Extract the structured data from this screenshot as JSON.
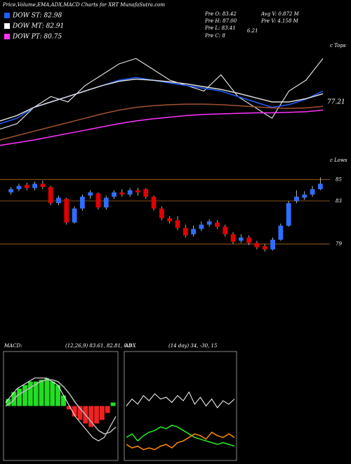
{
  "header": {
    "title": "Price,Volume,EMA,ADX,MACD Charts for XRT MunafaSutra.com",
    "legend": [
      {
        "label": "DOW ST: 82.98",
        "color": "#1f5fff"
      },
      {
        "label": "DOW MT: 82.91",
        "color": "#ffffff"
      },
      {
        "label": "DOW PT: 80.75",
        "color": "#ff33ff"
      }
    ],
    "info": [
      "Pre O: 83.42",
      "Pre H: 87.00",
      "Pre L: 83.41",
      "Pre C: 8",
      "6.21",
      "Avg V: 0.872 M",
      "Pre V: 4.158 M"
    ],
    "price_label": "77.21",
    "tops": "c Tops",
    "lows": "c Lows"
  },
  "chart_data": [
    {
      "type": "line",
      "ylim": [
        68,
        90
      ],
      "series": [
        {
          "name": "Price",
          "color": "#ffffff",
          "values": [
            74,
            75,
            78,
            80,
            79,
            82,
            84,
            86,
            87,
            85,
            83,
            82,
            81,
            84,
            80,
            78,
            76,
            81,
            83,
            87
          ]
        },
        {
          "name": "EMA short",
          "color": "#1f5fff",
          "values": [
            75,
            76,
            78,
            79,
            80,
            81,
            82,
            83,
            83.5,
            83,
            82.5,
            82,
            81.5,
            81,
            80,
            79,
            78,
            78.5,
            79.5,
            81
          ]
        },
        {
          "name": "EMA mid",
          "color": "#dddddd",
          "values": [
            75.5,
            76.5,
            78,
            79,
            80,
            81,
            82,
            82.8,
            83.2,
            83,
            82.7,
            82.3,
            81.8,
            81.3,
            80.6,
            79.8,
            79,
            79,
            79.6,
            80.5
          ]
        },
        {
          "name": "EMA long",
          "color": "#a0522d",
          "values": [
            72,
            72.8,
            73.6,
            74.4,
            75.2,
            76,
            76.8,
            77.5,
            78,
            78.3,
            78.5,
            78.6,
            78.6,
            78.5,
            78.3,
            78.1,
            77.9,
            77.8,
            77.9,
            78.2
          ]
        },
        {
          "name": "EMA longest",
          "color": "#ff33ff",
          "values": [
            71,
            71.5,
            72,
            72.6,
            73.2,
            73.8,
            74.4,
            75,
            75.5,
            75.9,
            76.2,
            76.5,
            76.7,
            76.8,
            76.9,
            77,
            77,
            77.1,
            77.2,
            77.5
          ]
        }
      ]
    },
    {
      "type": "candlestick",
      "ylim": [
        77.5,
        86
      ],
      "yticks": [
        85,
        83,
        79
      ],
      "grid_color": "#b06a20",
      "up_color": "#2f6fff",
      "down_color": "#e00000",
      "open": [
        83.8,
        84.1,
        84.5,
        84.2,
        84.6,
        84.3,
        82.8,
        83.2,
        81.0,
        82.3,
        83.5,
        83.7,
        82.4,
        83.4,
        83.8,
        83.6,
        84.0,
        84.1,
        83.4,
        82.3,
        81.4,
        81.2,
        80.5,
        79.9,
        80.4,
        80.8,
        81.0,
        80.6,
        79.9,
        79.3,
        79.6,
        79.1,
        78.8,
        78.5,
        79.4,
        80.7,
        83.0,
        83.3,
        83.6,
        84.1
      ],
      "close": [
        84.1,
        84.4,
        84.2,
        84.6,
        84.3,
        82.8,
        83.3,
        81.0,
        82.3,
        83.4,
        83.8,
        82.4,
        83.3,
        83.8,
        83.6,
        84.0,
        83.8,
        83.4,
        82.3,
        81.4,
        81.1,
        80.5,
        79.8,
        80.4,
        80.8,
        81.1,
        80.6,
        79.9,
        79.2,
        79.6,
        79.1,
        78.7,
        78.5,
        79.4,
        80.7,
        82.8,
        83.4,
        83.6,
        84.1,
        84.6
      ],
      "high": [
        84.3,
        84.6,
        84.7,
        84.8,
        84.9,
        84.4,
        83.5,
        83.3,
        82.5,
        83.6,
        84.0,
        83.8,
        83.5,
        84.0,
        84.1,
        84.2,
        84.2,
        84.2,
        83.5,
        82.5,
        81.6,
        81.6,
        80.8,
        80.7,
        81.1,
        81.3,
        81.2,
        80.8,
        80.1,
        79.9,
        79.8,
        79.3,
        79.0,
        79.6,
        80.9,
        83.0,
        84.0,
        83.9,
        84.4,
        85.2
      ],
      "low": [
        83.6,
        83.9,
        84.0,
        84.0,
        84.1,
        82.6,
        82.6,
        80.8,
        80.9,
        82.1,
        83.2,
        82.2,
        82.2,
        83.2,
        83.4,
        83.4,
        83.5,
        83.2,
        82.1,
        81.2,
        80.9,
        80.3,
        79.6,
        79.7,
        80.2,
        80.6,
        80.4,
        79.7,
        79.0,
        79.1,
        78.9,
        78.5,
        78.3,
        78.4,
        79.3,
        80.6,
        82.8,
        83.1,
        83.4,
        84.0
      ]
    },
    {
      "type": "macd",
      "label": "MACD:",
      "params": "(12,26,9) 83.61, 82.81, 0.8",
      "ylim": [
        -1.5,
        1.5
      ],
      "histogram_colors": [
        "#22dd22",
        "#ee2222"
      ],
      "histogram": [
        0.2,
        0.4,
        0.5,
        0.6,
        0.7,
        0.7,
        0.75,
        0.8,
        0.7,
        0.6,
        0.3,
        -0.1,
        -0.3,
        -0.4,
        -0.5,
        -0.6,
        -0.5,
        -0.4,
        -0.2,
        0.1
      ],
      "series": [
        {
          "name": "MACD",
          "color": "#ffffff",
          "values": [
            0.1,
            0.3,
            0.5,
            0.6,
            0.7,
            0.8,
            0.8,
            0.8,
            0.7,
            0.6,
            0.3,
            0.0,
            -0.3,
            -0.5,
            -0.7,
            -0.9,
            -1.0,
            -0.9,
            -0.6,
            -0.3
          ]
        },
        {
          "name": "Signal",
          "color": "#bbbbbb",
          "values": [
            0.0,
            0.1,
            0.3,
            0.4,
            0.5,
            0.6,
            0.7,
            0.75,
            0.75,
            0.7,
            0.55,
            0.35,
            0.1,
            -0.1,
            -0.3,
            -0.5,
            -0.7,
            -0.8,
            -0.75,
            -0.6
          ]
        }
      ]
    },
    {
      "type": "line",
      "label": "ADX",
      "params": "(14 day) 34, -30, 15",
      "ylim": [
        0,
        60
      ],
      "series": [
        {
          "name": "ADX",
          "color": "#ffffff",
          "values": [
            30,
            34,
            31,
            36,
            33,
            37,
            34,
            35,
            32,
            36,
            33,
            38,
            31,
            35,
            30,
            34,
            29,
            33,
            31,
            34
          ]
        },
        {
          "name": "+DI",
          "color": "#22ee22",
          "values": [
            12,
            14,
            10,
            13,
            15,
            16,
            18,
            17,
            19,
            18,
            16,
            14,
            12,
            11,
            10,
            9,
            8,
            9,
            8,
            7
          ]
        },
        {
          "name": "-DI",
          "color": "#ff8c00",
          "values": [
            8,
            6,
            7,
            5,
            6,
            5,
            7,
            8,
            6,
            9,
            10,
            12,
            14,
            13,
            11,
            15,
            13,
            12,
            14,
            12
          ]
        }
      ]
    }
  ]
}
